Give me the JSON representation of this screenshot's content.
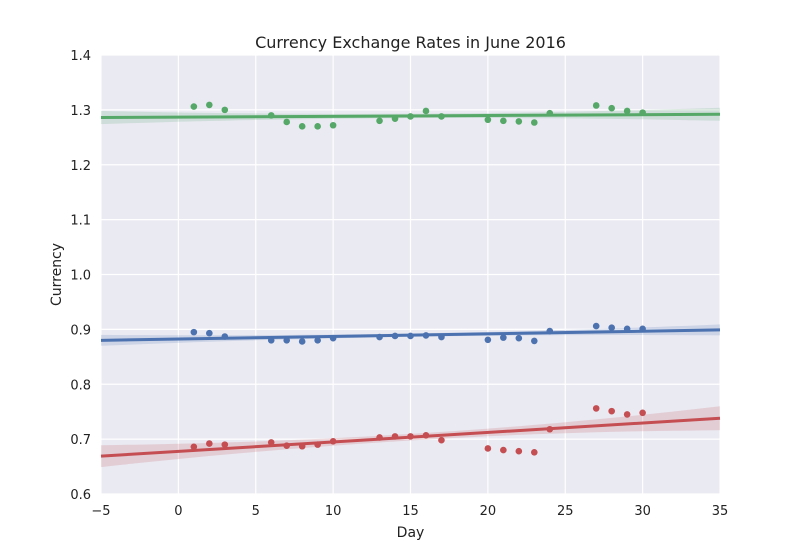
{
  "chart_data": {
    "type": "scatter",
    "title": "Currency Exchange Rates in June 2016",
    "xlabel": "Day",
    "ylabel": "Currency",
    "xlim": [
      -5,
      35
    ],
    "ylim": [
      0.6,
      1.4
    ],
    "xticks": [
      -5,
      0,
      5,
      10,
      15,
      20,
      25,
      30,
      35
    ],
    "yticks": [
      0.6,
      0.7,
      0.8,
      0.9,
      1.0,
      1.1,
      1.2,
      1.3,
      1.4
    ],
    "xtick_labels": [
      "−5",
      "0",
      "5",
      "10",
      "15",
      "20",
      "25",
      "30",
      "35"
    ],
    "ytick_labels": [
      "0.6",
      "0.7",
      "0.8",
      "0.9",
      "1.0",
      "1.1",
      "1.2",
      "1.3",
      "1.4"
    ],
    "grid": true,
    "background": "#eaeaf2",
    "series": [
      {
        "color": "#55a868",
        "x": [
          1,
          2,
          3,
          6,
          7,
          8,
          9,
          10,
          13,
          14,
          15,
          16,
          17,
          20,
          21,
          22,
          23,
          24,
          27,
          28,
          29,
          30
        ],
        "y": [
          1.306,
          1.309,
          1.3,
          1.29,
          1.278,
          1.27,
          1.27,
          1.272,
          1.28,
          1.284,
          1.288,
          1.298,
          1.288,
          1.282,
          1.28,
          1.279,
          1.277,
          1.294,
          1.308,
          1.303,
          1.298,
          1.295
        ],
        "fit": {
          "x": [
            -5,
            35
          ],
          "y": [
            1.286,
            1.292
          ]
        },
        "ci_width": [
          0.012,
          0.004,
          0.012
        ]
      },
      {
        "color": "#4c72b0",
        "x": [
          1,
          2,
          3,
          6,
          7,
          8,
          9,
          10,
          13,
          14,
          15,
          16,
          17,
          20,
          21,
          22,
          23,
          24,
          27,
          28,
          29,
          30
        ],
        "y": [
          0.895,
          0.893,
          0.887,
          0.88,
          0.88,
          0.878,
          0.88,
          0.884,
          0.886,
          0.888,
          0.888,
          0.889,
          0.886,
          0.881,
          0.885,
          0.884,
          0.879,
          0.897,
          0.906,
          0.903,
          0.901,
          0.901
        ],
        "fit": {
          "x": [
            -5,
            35
          ],
          "y": [
            0.88,
            0.899
          ]
        },
        "ci_width": [
          0.01,
          0.003,
          0.01
        ]
      },
      {
        "color": "#c44e52",
        "x": [
          1,
          2,
          3,
          6,
          7,
          8,
          9,
          10,
          13,
          14,
          15,
          16,
          17,
          20,
          21,
          22,
          23,
          24,
          27,
          28,
          29,
          30
        ],
        "y": [
          0.686,
          0.692,
          0.69,
          0.694,
          0.688,
          0.687,
          0.69,
          0.696,
          0.703,
          0.705,
          0.705,
          0.707,
          0.698,
          0.683,
          0.68,
          0.678,
          0.676,
          0.718,
          0.756,
          0.751,
          0.745,
          0.748
        ],
        "fit": {
          "x": [
            -5,
            35
          ],
          "y": [
            0.669,
            0.738
          ]
        },
        "ci_width": [
          0.02,
          0.006,
          0.022
        ]
      }
    ]
  }
}
